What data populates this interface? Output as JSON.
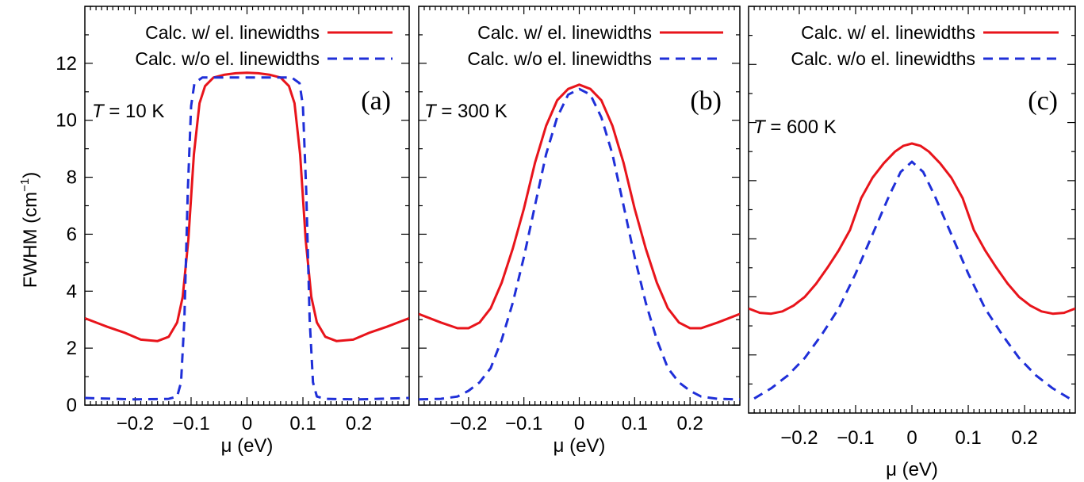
{
  "shared": {
    "ylabel_text": "FWHM (cm",
    "ylabel_sup": "−1",
    "ylabel_close": ")",
    "xlabel": "μ (eV)",
    "y_ticks": [
      0,
      2,
      4,
      6,
      8,
      10,
      12
    ],
    "x_ticks": [
      -0.2,
      -0.1,
      0,
      0.1,
      0.2
    ],
    "x_tick_labels": [
      "−0.2",
      "−0.1",
      "0",
      "0.1",
      "0.2"
    ],
    "legend": [
      "Calc. w/ el. linewidths",
      "Calc. w/o el. linewidths"
    ],
    "colors": {
      "with": "#e8141b",
      "without": "#1f2fd8"
    }
  },
  "chart_data": [
    {
      "type": "line",
      "panel_label": "(a)",
      "temperature": "T = 10 K",
      "xlim": [
        -0.29,
        0.29
      ],
      "ylim": [
        0,
        14
      ],
      "series": [
        {
          "name": "Calc. w/ el. linewidths",
          "x": [
            -0.29,
            -0.25,
            -0.22,
            -0.19,
            -0.16,
            -0.14,
            -0.125,
            -0.115,
            -0.105,
            -0.095,
            -0.085,
            -0.075,
            -0.06,
            -0.04,
            -0.02,
            0,
            0.02,
            0.04,
            0.06,
            0.075,
            0.085,
            0.095,
            0.105,
            0.115,
            0.125,
            0.14,
            0.16,
            0.19,
            0.22,
            0.25,
            0.29
          ],
          "y": [
            3.05,
            2.75,
            2.55,
            2.3,
            2.25,
            2.4,
            2.9,
            3.8,
            5.8,
            8.8,
            10.6,
            11.2,
            11.5,
            11.6,
            11.65,
            11.67,
            11.65,
            11.6,
            11.5,
            11.2,
            10.6,
            8.8,
            5.8,
            3.8,
            2.9,
            2.4,
            2.25,
            2.3,
            2.55,
            2.75,
            3.05
          ]
        },
        {
          "name": "Calc. w/o el. linewidths",
          "x": [
            -0.29,
            -0.2,
            -0.14,
            -0.125,
            -0.118,
            -0.112,
            -0.106,
            -0.1,
            -0.094,
            -0.08,
            -0.05,
            0,
            0.05,
            0.08,
            0.094,
            0.1,
            0.106,
            0.112,
            0.118,
            0.125,
            0.14,
            0.2,
            0.29
          ],
          "y": [
            0.25,
            0.2,
            0.22,
            0.3,
            0.8,
            3.0,
            7.5,
            10.5,
            11.3,
            11.5,
            11.5,
            11.5,
            11.5,
            11.5,
            11.3,
            10.5,
            7.5,
            3.0,
            0.8,
            0.3,
            0.22,
            0.2,
            0.25
          ]
        }
      ]
    },
    {
      "type": "line",
      "panel_label": "(b)",
      "temperature": "T = 300 K",
      "xlim": [
        -0.29,
        0.29
      ],
      "ylim": [
        0,
        14
      ],
      "series": [
        {
          "name": "Calc. w/ el. linewidths",
          "x": [
            -0.29,
            -0.25,
            -0.22,
            -0.2,
            -0.18,
            -0.16,
            -0.14,
            -0.12,
            -0.1,
            -0.08,
            -0.06,
            -0.04,
            -0.02,
            0,
            0.02,
            0.04,
            0.06,
            0.08,
            0.1,
            0.12,
            0.14,
            0.16,
            0.18,
            0.2,
            0.22,
            0.25,
            0.29
          ],
          "y": [
            3.2,
            2.9,
            2.7,
            2.7,
            2.9,
            3.4,
            4.3,
            5.5,
            6.9,
            8.5,
            9.8,
            10.7,
            11.1,
            11.25,
            11.1,
            10.7,
            9.8,
            8.5,
            6.9,
            5.5,
            4.3,
            3.4,
            2.9,
            2.7,
            2.7,
            2.9,
            3.2
          ]
        },
        {
          "name": "Calc. w/o el. linewidths",
          "x": [
            -0.29,
            -0.25,
            -0.22,
            -0.2,
            -0.18,
            -0.16,
            -0.14,
            -0.12,
            -0.1,
            -0.08,
            -0.06,
            -0.04,
            -0.02,
            0,
            0.02,
            0.04,
            0.06,
            0.08,
            0.1,
            0.12,
            0.14,
            0.16,
            0.18,
            0.2,
            0.22,
            0.25,
            0.29
          ],
          "y": [
            0.2,
            0.22,
            0.3,
            0.5,
            0.8,
            1.3,
            2.3,
            3.6,
            5.2,
            7.0,
            8.8,
            10.1,
            10.9,
            11.1,
            10.9,
            10.1,
            8.8,
            7.0,
            5.2,
            3.6,
            2.3,
            1.3,
            0.8,
            0.5,
            0.3,
            0.22,
            0.2
          ]
        }
      ]
    },
    {
      "type": "line",
      "panel_label": "(c)",
      "temperature": "T = 600 K",
      "xlim": [
        -0.29,
        0.29
      ],
      "ylim": [
        0,
        14
      ],
      "series": [
        {
          "name": "Calc. w/ el. linewidths",
          "x": [
            -0.29,
            -0.27,
            -0.25,
            -0.23,
            -0.21,
            -0.19,
            -0.17,
            -0.15,
            -0.13,
            -0.11,
            -0.09,
            -0.07,
            -0.05,
            -0.03,
            -0.015,
            0,
            0.015,
            0.03,
            0.05,
            0.07,
            0.09,
            0.11,
            0.13,
            0.15,
            0.17,
            0.19,
            0.21,
            0.23,
            0.25,
            0.27,
            0.29
          ],
          "y": [
            3.6,
            3.45,
            3.42,
            3.5,
            3.7,
            4.0,
            4.45,
            5.0,
            5.6,
            6.3,
            7.4,
            8.1,
            8.6,
            9.0,
            9.2,
            9.28,
            9.2,
            9.0,
            8.6,
            8.1,
            7.4,
            6.3,
            5.6,
            5.0,
            4.45,
            4.0,
            3.7,
            3.5,
            3.42,
            3.45,
            3.6
          ]
        },
        {
          "name": "Calc. w/o el. linewidths",
          "x": [
            -0.28,
            -0.25,
            -0.22,
            -0.19,
            -0.16,
            -0.13,
            -0.1,
            -0.08,
            -0.06,
            -0.04,
            -0.02,
            0,
            0.02,
            0.04,
            0.06,
            0.08,
            0.1,
            0.13,
            0.16,
            0.19,
            0.22,
            0.25,
            0.28
          ],
          "y": [
            0.5,
            0.85,
            1.3,
            1.9,
            2.7,
            3.6,
            4.8,
            5.7,
            6.6,
            7.5,
            8.3,
            8.65,
            8.3,
            7.5,
            6.6,
            5.7,
            4.8,
            3.6,
            2.7,
            1.9,
            1.3,
            0.85,
            0.5
          ]
        }
      ]
    }
  ]
}
